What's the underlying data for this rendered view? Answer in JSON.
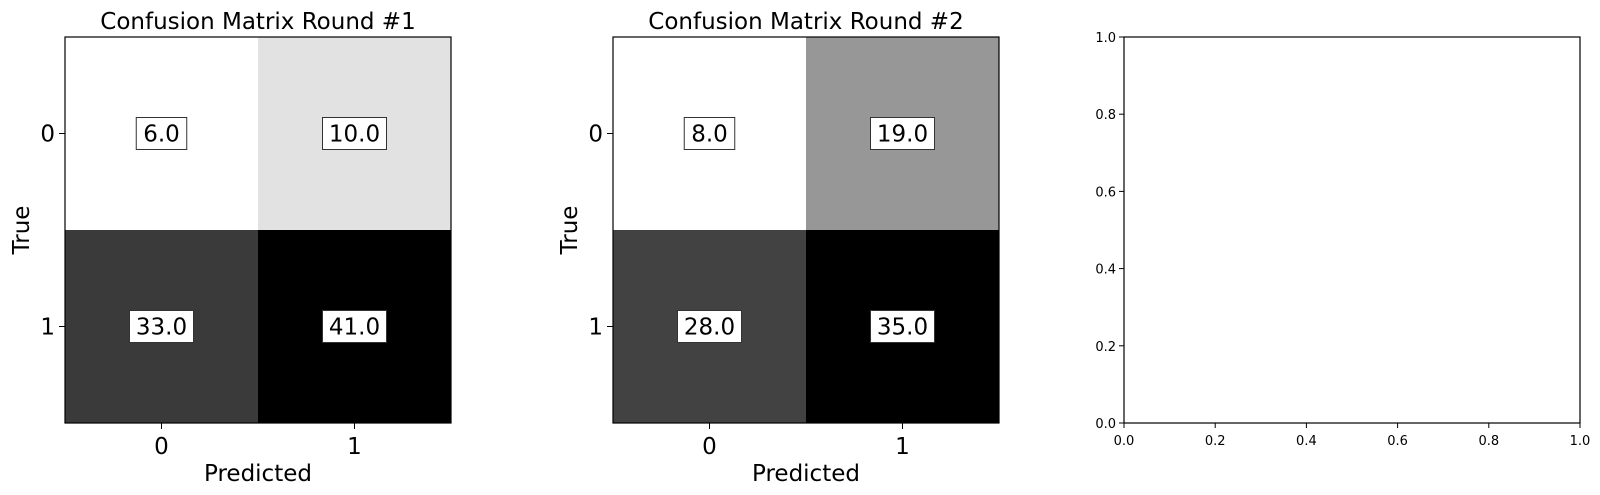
{
  "chart_data": [
    {
      "type": "heatmap",
      "title": "Confusion Matrix Round #1",
      "xlabel": "Predicted",
      "ylabel": "True",
      "x_categories": [
        "0",
        "1"
      ],
      "y_categories": [
        "0",
        "1"
      ],
      "values": [
        [
          6.0,
          10.0
        ],
        [
          33.0,
          41.0
        ]
      ],
      "value_labels": [
        [
          "6.0",
          "10.0"
        ],
        [
          "33.0",
          "41.0"
        ]
      ],
      "colormap": "grayscale (white = low, black = high)"
    },
    {
      "type": "heatmap",
      "title": "Confusion Matrix Round #2",
      "xlabel": "Predicted",
      "ylabel": "True",
      "x_categories": [
        "0",
        "1"
      ],
      "y_categories": [
        "0",
        "1"
      ],
      "values": [
        [
          8.0,
          19.0
        ],
        [
          28.0,
          35.0
        ]
      ],
      "value_labels": [
        [
          "8.0",
          "19.0"
        ],
        [
          "28.0",
          "35.0"
        ]
      ],
      "colormap": "grayscale (white = low, black = high)"
    },
    {
      "type": "line",
      "title": "",
      "xlabel": "",
      "ylabel": "",
      "xlim": [
        0.0,
        1.0
      ],
      "ylim": [
        0.0,
        1.0
      ],
      "xticks": [
        "0.0",
        "0.2",
        "0.4",
        "0.6",
        "0.8",
        "1.0"
      ],
      "yticks": [
        "0.0",
        "0.2",
        "0.4",
        "0.6",
        "0.8",
        "1.0"
      ],
      "series": []
    }
  ]
}
